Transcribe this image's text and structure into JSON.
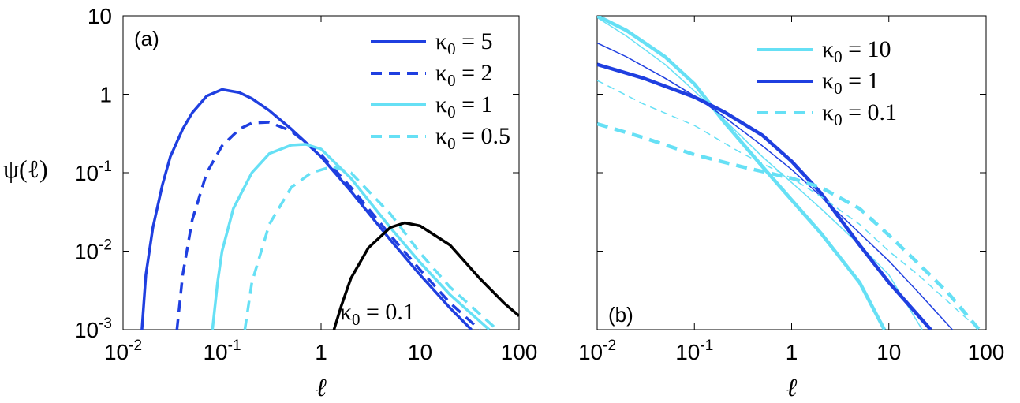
{
  "colors": {
    "dark_blue": "#1f3fe0",
    "light_blue": "#66e0f5",
    "black": "#000000"
  },
  "chart_data": [
    {
      "panel": "a",
      "type": "line",
      "panel_label": "(a)",
      "xlabel": "ℓ",
      "ylabel": "ψ(ℓ)",
      "xscale": "log",
      "yscale": "log",
      "xlim": [
        0.01,
        100
      ],
      "ylim": [
        0.001,
        10
      ],
      "x_ticks": [
        {
          "base": "10",
          "exp": "-2"
        },
        {
          "base": "10",
          "exp": "-1"
        },
        {
          "base": "1",
          "exp": ""
        },
        {
          "base": "10",
          "exp": ""
        },
        {
          "base": "100",
          "exp": ""
        }
      ],
      "y_ticks": [
        {
          "base": "10",
          "exp": "-3"
        },
        {
          "base": "10",
          "exp": "-2"
        },
        {
          "base": "10",
          "exp": "-1"
        },
        {
          "base": "1",
          "exp": ""
        },
        {
          "base": "10",
          "exp": ""
        }
      ],
      "legend_position": "top-right",
      "series": [
        {
          "name": "κ0 = 5",
          "kappa_symbol": "κ",
          "subscript": "0",
          "rest": " = 5",
          "color": "dark_blue",
          "style": "solid",
          "width": 3.5,
          "points": [
            [
              0.0155,
              0.001
            ],
            [
              0.017,
              0.005
            ],
            [
              0.02,
              0.02
            ],
            [
              0.025,
              0.07
            ],
            [
              0.03,
              0.16
            ],
            [
              0.04,
              0.36
            ],
            [
              0.05,
              0.58
            ],
            [
              0.07,
              0.95
            ],
            [
              0.1,
              1.15
            ],
            [
              0.15,
              1.05
            ],
            [
              0.2,
              0.88
            ],
            [
              0.3,
              0.62
            ],
            [
              0.5,
              0.36
            ],
            [
              1,
              0.16
            ],
            [
              2,
              0.058
            ],
            [
              5,
              0.014
            ],
            [
              10,
              0.005
            ],
            [
              20,
              0.0019
            ],
            [
              33,
              0.001
            ]
          ]
        },
        {
          "name": "κ0 = 2",
          "kappa_symbol": "κ",
          "subscript": "0",
          "rest": " = 2",
          "color": "dark_blue",
          "style": "dashed",
          "width": 3.5,
          "points": [
            [
              0.035,
              0.001
            ],
            [
              0.04,
              0.005
            ],
            [
              0.05,
              0.025
            ],
            [
              0.07,
              0.1
            ],
            [
              0.1,
              0.22
            ],
            [
              0.15,
              0.36
            ],
            [
              0.2,
              0.43
            ],
            [
              0.3,
              0.44
            ],
            [
              0.5,
              0.34
            ],
            [
              1,
              0.17
            ],
            [
              2,
              0.065
            ],
            [
              5,
              0.016
            ],
            [
              10,
              0.0058
            ],
            [
              20,
              0.0022
            ],
            [
              40,
              0.001
            ]
          ]
        },
        {
          "name": "κ0 = 1",
          "kappa_symbol": "κ",
          "subscript": "0",
          "rest": " = 1",
          "color": "light_blue",
          "style": "solid",
          "width": 3.5,
          "points": [
            [
              0.08,
              0.001
            ],
            [
              0.09,
              0.004
            ],
            [
              0.1,
              0.01
            ],
            [
              0.13,
              0.035
            ],
            [
              0.2,
              0.1
            ],
            [
              0.3,
              0.175
            ],
            [
              0.5,
              0.225
            ],
            [
              0.7,
              0.23
            ],
            [
              1,
              0.2
            ],
            [
              2,
              0.085
            ],
            [
              5,
              0.02
            ],
            [
              10,
              0.0072
            ],
            [
              20,
              0.0028
            ],
            [
              50,
              0.001
            ]
          ]
        },
        {
          "name": "κ0 = 0.5",
          "kappa_symbol": "κ",
          "subscript": "0",
          "rest": " = 0.5",
          "color": "light_blue",
          "style": "dashed",
          "width": 3.5,
          "points": [
            [
              0.17,
              0.001
            ],
            [
              0.2,
              0.004
            ],
            [
              0.3,
              0.022
            ],
            [
              0.5,
              0.065
            ],
            [
              0.8,
              0.1
            ],
            [
              1.3,
              0.12
            ],
            [
              2,
              0.1
            ],
            [
              5,
              0.03
            ],
            [
              10,
              0.0095
            ],
            [
              20,
              0.0035
            ],
            [
              60,
              0.001
            ]
          ]
        },
        {
          "name": "κ0 = 0.1",
          "kappa_symbol": "κ",
          "subscript": "0",
          "rest": " = 0.1",
          "color": "black",
          "style": "solid",
          "width": 3.5,
          "label_inline": true,
          "points": [
            [
              1.35,
              0.001
            ],
            [
              1.6,
              0.002
            ],
            [
              2,
              0.0045
            ],
            [
              3,
              0.011
            ],
            [
              5,
              0.02
            ],
            [
              7,
              0.023
            ],
            [
              10,
              0.021
            ],
            [
              20,
              0.012
            ],
            [
              40,
              0.0045
            ],
            [
              70,
              0.0022
            ],
            [
              100,
              0.0015
            ]
          ]
        }
      ]
    },
    {
      "panel": "b",
      "type": "line",
      "panel_label": "(b)",
      "xlabel": "ℓ",
      "xscale": "log",
      "yscale": "log",
      "xlim": [
        0.01,
        100
      ],
      "ylim": [
        0.001,
        10
      ],
      "x_ticks": [
        {
          "base": "10",
          "exp": "-2"
        },
        {
          "base": "10",
          "exp": "-1"
        },
        {
          "base": "1",
          "exp": ""
        },
        {
          "base": "10",
          "exp": ""
        },
        {
          "base": "100",
          "exp": ""
        }
      ],
      "legend_position": "top-right",
      "series": [
        {
          "name": "κ0 = 10 (thick)",
          "label": "κ0 = 10",
          "kappa_symbol": "κ",
          "subscript": "0",
          "rest": " = 10",
          "color": "light_blue",
          "style": "solid",
          "width": 4.5,
          "legend": true,
          "points": [
            [
              0.01,
              10
            ],
            [
              0.02,
              6.5
            ],
            [
              0.05,
              3
            ],
            [
              0.1,
              1.35
            ],
            [
              0.2,
              0.45
            ],
            [
              0.5,
              0.12
            ],
            [
              1,
              0.045
            ],
            [
              2,
              0.017
            ],
            [
              5,
              0.004
            ],
            [
              9,
              0.001
            ]
          ]
        },
        {
          "name": "κ0 = 10 (thin)",
          "color": "light_blue",
          "style": "solid",
          "width": 1.5,
          "legend": false,
          "points": [
            [
              0.01,
              9.5
            ],
            [
              0.02,
              5.5
            ],
            [
              0.05,
              2.4
            ],
            [
              0.1,
              1.1
            ],
            [
              0.2,
              0.48
            ],
            [
              0.5,
              0.16
            ],
            [
              1,
              0.075
            ],
            [
              2,
              0.035
            ],
            [
              5,
              0.012
            ],
            [
              10,
              0.005
            ],
            [
              22,
              0.001
            ]
          ]
        },
        {
          "name": "κ0 = 1 (thick)",
          "label": "κ0 = 1",
          "kappa_symbol": "κ",
          "subscript": "0",
          "rest": " = 1",
          "color": "dark_blue",
          "style": "solid",
          "width": 4.5,
          "legend": true,
          "points": [
            [
              0.01,
              2.4
            ],
            [
              0.03,
              1.6
            ],
            [
              0.1,
              0.92
            ],
            [
              0.2,
              0.6
            ],
            [
              0.5,
              0.3
            ],
            [
              1,
              0.14
            ],
            [
              2,
              0.055
            ],
            [
              5,
              0.012
            ],
            [
              10,
              0.004
            ],
            [
              27,
              0.001
            ]
          ]
        },
        {
          "name": "κ0 = 1 (thin)",
          "color": "dark_blue",
          "style": "solid",
          "width": 1.5,
          "legend": false,
          "points": [
            [
              0.01,
              4.5
            ],
            [
              0.02,
              3
            ],
            [
              0.05,
              1.6
            ],
            [
              0.1,
              0.95
            ],
            [
              0.2,
              0.52
            ],
            [
              0.5,
              0.22
            ],
            [
              1,
              0.11
            ],
            [
              2,
              0.05
            ],
            [
              5,
              0.017
            ],
            [
              10,
              0.0075
            ],
            [
              20,
              0.003
            ],
            [
              45,
              0.001
            ]
          ]
        },
        {
          "name": "κ0 = 0.1 (thick)",
          "label": "κ0 = 0.1",
          "kappa_symbol": "κ",
          "subscript": "0",
          "rest": " = 0.1",
          "color": "light_blue",
          "style": "dashed",
          "width": 4.5,
          "legend": true,
          "points": [
            [
              0.01,
              0.42
            ],
            [
              0.03,
              0.28
            ],
            [
              0.1,
              0.17
            ],
            [
              0.3,
              0.12
            ],
            [
              1,
              0.085
            ],
            [
              2,
              0.065
            ],
            [
              5,
              0.035
            ],
            [
              10,
              0.016
            ],
            [
              20,
              0.007
            ],
            [
              40,
              0.003
            ],
            [
              85,
              0.001
            ]
          ]
        },
        {
          "name": "κ0 = 0.1 (thin)",
          "color": "light_blue",
          "style": "dashed",
          "width": 1.5,
          "legend": false,
          "points": [
            [
              0.01,
              1.5
            ],
            [
              0.03,
              0.75
            ],
            [
              0.1,
              0.4
            ],
            [
              0.3,
              0.18
            ],
            [
              1,
              0.085
            ],
            [
              2,
              0.05
            ],
            [
              5,
              0.022
            ],
            [
              10,
              0.01
            ],
            [
              20,
              0.005
            ],
            [
              50,
              0.0018
            ],
            [
              85,
              0.001
            ]
          ]
        }
      ]
    }
  ]
}
